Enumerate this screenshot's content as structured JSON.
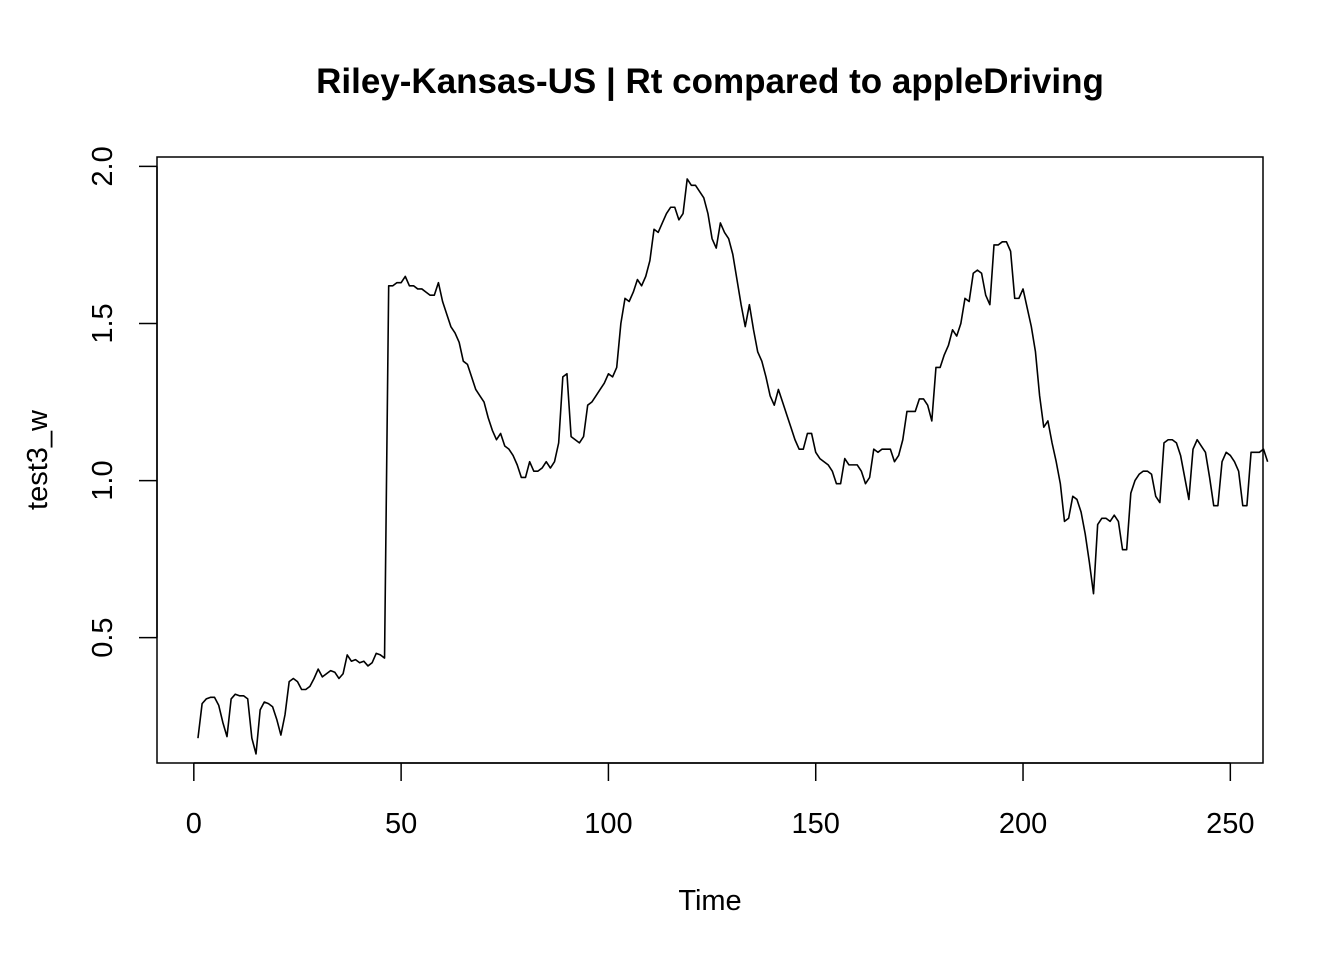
{
  "chart_data": {
    "type": "line",
    "title": "Riley-Kansas-US | Rt compared to appleDriving",
    "xlabel": "Time",
    "ylabel": "test3_w",
    "xlim": [
      -8.88,
      257.88
    ],
    "ylim": [
      0.101,
      2.03
    ],
    "xticks": [
      0,
      50,
      100,
      150,
      200,
      250
    ],
    "yticks": [
      0.5,
      1.0,
      1.5,
      2.0
    ],
    "xtick_labels": [
      "0",
      "50",
      "100",
      "150",
      "200",
      "250"
    ],
    "ytick_labels": [
      "0.5",
      "1.0",
      "1.5",
      "2.0"
    ],
    "grid": false,
    "legend": "none",
    "line_color": "#000000",
    "series": [
      {
        "x_start": 1,
        "values": [
          0.18,
          0.29,
          0.305,
          0.31,
          0.31,
          0.285,
          0.23,
          0.185,
          0.305,
          0.32,
          0.315,
          0.315,
          0.305,
          0.18,
          0.13,
          0.27,
          0.295,
          0.29,
          0.28,
          0.24,
          0.19,
          0.255,
          0.36,
          0.37,
          0.36,
          0.335,
          0.335,
          0.345,
          0.37,
          0.4,
          0.375,
          0.385,
          0.395,
          0.39,
          0.37,
          0.385,
          0.445,
          0.425,
          0.43,
          0.42,
          0.425,
          0.41,
          0.42,
          0.45,
          0.445,
          0.435,
          1.62,
          1.62,
          1.63,
          1.63,
          1.65,
          1.62,
          1.62,
          1.61,
          1.61,
          1.6,
          1.59,
          1.59,
          1.63,
          1.57,
          1.53,
          1.49,
          1.47,
          1.44,
          1.38,
          1.37,
          1.33,
          1.29,
          1.27,
          1.25,
          1.2,
          1.16,
          1.13,
          1.15,
          1.11,
          1.1,
          1.08,
          1.05,
          1.01,
          1.01,
          1.06,
          1.03,
          1.03,
          1.04,
          1.06,
          1.04,
          1.06,
          1.12,
          1.33,
          1.34,
          1.14,
          1.13,
          1.12,
          1.14,
          1.24,
          1.25,
          1.27,
          1.29,
          1.31,
          1.34,
          1.33,
          1.36,
          1.5,
          1.58,
          1.57,
          1.6,
          1.64,
          1.62,
          1.65,
          1.7,
          1.8,
          1.79,
          1.82,
          1.85,
          1.87,
          1.87,
          1.83,
          1.85,
          1.96,
          1.94,
          1.94,
          1.92,
          1.9,
          1.85,
          1.77,
          1.74,
          1.82,
          1.79,
          1.77,
          1.72,
          1.64,
          1.56,
          1.49,
          1.56,
          1.48,
          1.41,
          1.38,
          1.33,
          1.27,
          1.24,
          1.29,
          1.25,
          1.21,
          1.17,
          1.13,
          1.1,
          1.1,
          1.15,
          1.15,
          1.09,
          1.07,
          1.06,
          1.05,
          1.03,
          0.99,
          0.99,
          1.07,
          1.05,
          1.05,
          1.05,
          1.03,
          0.99,
          1.01,
          1.1,
          1.09,
          1.1,
          1.1,
          1.1,
          1.06,
          1.08,
          1.13,
          1.22,
          1.22,
          1.22,
          1.26,
          1.26,
          1.24,
          1.19,
          1.36,
          1.36,
          1.4,
          1.43,
          1.48,
          1.46,
          1.5,
          1.58,
          1.57,
          1.66,
          1.67,
          1.66,
          1.59,
          1.56,
          1.75,
          1.75,
          1.76,
          1.76,
          1.73,
          1.58,
          1.58,
          1.61,
          1.55,
          1.49,
          1.41,
          1.27,
          1.17,
          1.19,
          1.12,
          1.06,
          0.99,
          0.87,
          0.88,
          0.95,
          0.94,
          0.9,
          0.83,
          0.74,
          0.64,
          0.86,
          0.88,
          0.88,
          0.87,
          0.89,
          0.87,
          0.78,
          0.78,
          0.96,
          1.0,
          1.02,
          1.03,
          1.03,
          1.02,
          0.95,
          0.93,
          1.12,
          1.13,
          1.13,
          1.12,
          1.08,
          1.01,
          0.94,
          1.1,
          1.13,
          1.11,
          1.09,
          1.01,
          0.92,
          0.92,
          1.06,
          1.09,
          1.08,
          1.06,
          1.03,
          0.92,
          0.92,
          1.09,
          1.09,
          1.09,
          1.1,
          1.06
        ]
      }
    ]
  }
}
